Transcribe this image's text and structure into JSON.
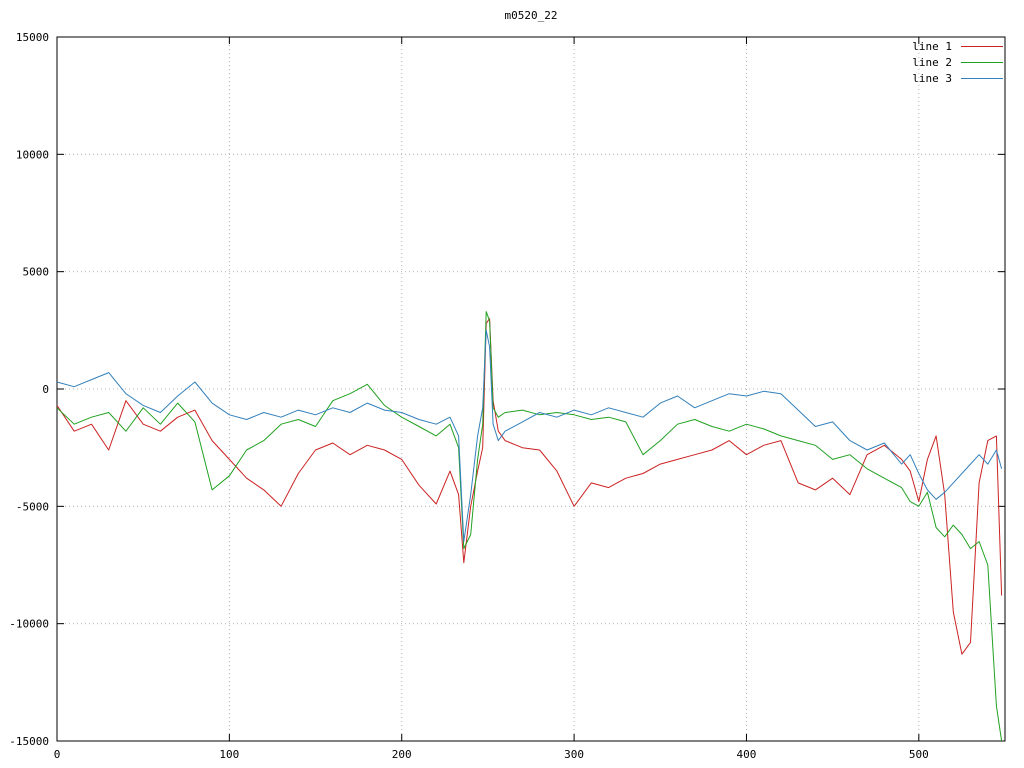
{
  "chart_data": {
    "type": "line",
    "title": "m0520_22",
    "xlabel": "",
    "ylabel": "",
    "xlim": [
      0,
      550
    ],
    "ylim": [
      -15000,
      15000
    ],
    "xticks": [
      0,
      100,
      200,
      300,
      400,
      500
    ],
    "yticks": [
      -15000,
      -10000,
      -5000,
      0,
      5000,
      10000,
      15000
    ],
    "grid": true,
    "grid_style": "dotted",
    "legend_position": "top-right",
    "background": "#ffffff",
    "border_color": "#000000",
    "grid_color": "#b5b5b5",
    "x": [
      0,
      10,
      20,
      30,
      40,
      50,
      60,
      70,
      80,
      90,
      100,
      110,
      120,
      130,
      140,
      150,
      160,
      170,
      180,
      190,
      200,
      210,
      220,
      228,
      233,
      236,
      240,
      244,
      247,
      249,
      251,
      253,
      256,
      260,
      270,
      280,
      290,
      300,
      310,
      320,
      330,
      340,
      350,
      360,
      370,
      380,
      390,
      400,
      410,
      420,
      430,
      440,
      450,
      460,
      470,
      480,
      490,
      495,
      500,
      505,
      510,
      515,
      520,
      525,
      530,
      535,
      540,
      545,
      548
    ],
    "series": [
      {
        "name": "line 1",
        "color": "#cc2222",
        "values": [
          -700,
          -1800,
          -1500,
          -2600,
          -500,
          -1500,
          -1800,
          -1200,
          -900,
          -2200,
          -3000,
          -3800,
          -4300,
          -5000,
          -3600,
          -2600,
          -2300,
          -2800,
          -2400,
          -2600,
          -3000,
          -4100,
          -4900,
          -3500,
          -4500,
          -7400,
          -5000,
          -3500,
          -2500,
          2800,
          3000,
          -500,
          -1800,
          -2200,
          -2500,
          -2600,
          -3500,
          -5000,
          -4000,
          -4200,
          -3800,
          -3600,
          -3200,
          -3000,
          -2800,
          -2600,
          -2200,
          -2800,
          -2400,
          -2200,
          -4000,
          -4300,
          -3800,
          -4500,
          -2800,
          -2400,
          -3000,
          -3500,
          -4800,
          -3000,
          -2000,
          -4500,
          -9500,
          -11300,
          -10800,
          -4000,
          -2200,
          -2000,
          -8800
        ]
      },
      {
        "name": "line 2",
        "color": "#21a121",
        "values": [
          -800,
          -1500,
          -1200,
          -1000,
          -1800,
          -800,
          -1500,
          -600,
          -1400,
          -4300,
          -3700,
          -2600,
          -2200,
          -1500,
          -1300,
          -1600,
          -500,
          -200,
          200,
          -700,
          -1200,
          -1600,
          -2000,
          -1500,
          -2500,
          -6800,
          -6200,
          -3000,
          -1500,
          3300,
          2900,
          -800,
          -1200,
          -1000,
          -900,
          -1100,
          -1000,
          -1100,
          -1300,
          -1200,
          -1400,
          -2800,
          -2200,
          -1500,
          -1300,
          -1600,
          -1800,
          -1500,
          -1700,
          -2000,
          -2200,
          -2400,
          -3000,
          -2800,
          -3400,
          -3800,
          -4200,
          -4800,
          -5000,
          -4400,
          -5900,
          -6300,
          -5800,
          -6200,
          -6800,
          -6500,
          -7500,
          -13500,
          -15000
        ]
      },
      {
        "name": "line 3",
        "color": "#3380bb",
        "values": [
          300,
          100,
          400,
          700,
          -200,
          -700,
          -1000,
          -300,
          300,
          -600,
          -1100,
          -1300,
          -1000,
          -1200,
          -900,
          -1100,
          -800,
          -1000,
          -600,
          -900,
          -1000,
          -1300,
          -1500,
          -1200,
          -2000,
          -6500,
          -4500,
          -2000,
          -800,
          2500,
          1800,
          -1500,
          -2200,
          -1800,
          -1400,
          -1000,
          -1200,
          -900,
          -1100,
          -800,
          -1000,
          -1200,
          -600,
          -300,
          -800,
          -500,
          -200,
          -300,
          -100,
          -200,
          -900,
          -1600,
          -1400,
          -2200,
          -2600,
          -2300,
          -3200,
          -2800,
          -3600,
          -4300,
          -4700,
          -4400,
          -4000,
          -3600,
          -3200,
          -2800,
          -3200,
          -2600,
          -3400
        ]
      }
    ]
  }
}
